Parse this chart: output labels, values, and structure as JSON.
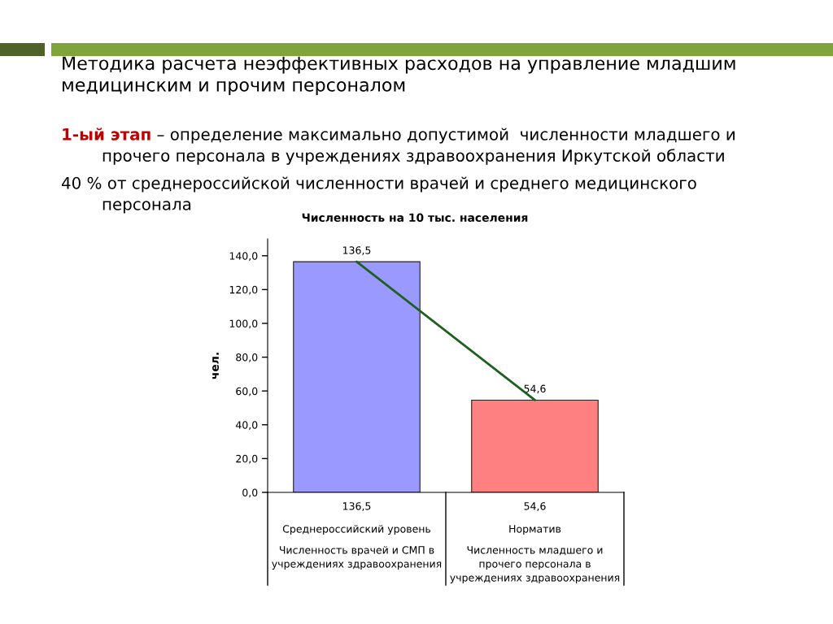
{
  "chart_data": {
    "type": "bar",
    "title": "Методика расчета неэффективных расходов на управление младшим\nмедицинским и прочим персоналом",
    "subtitle": "Численность на 10 тыс. населения",
    "ylabel": "чел.",
    "annotations": [
      "1-ый этап",
      "– определение максимально допустимой  численности младшего и",
      "прочего персонала в учреждениях здравоохранения Иркутской области",
      "40 % от среднероссийской численности врачей и среднего медицинского\nперсонала"
    ],
    "categories": [
      "Среднероссийский уровень\nЧисленность врачей и СМП в\nучреждениях здравоохранения",
      "Норматив\nЧисленность младшего и\nпрочего персонала в\nучреждениях здравоохранения"
    ],
    "series": [
      {
        "colors": [
          "#9999ff",
          "#ff8080"
        ],
        "values": [
          136.5,
          54.6
        ],
        "value_labels": [
          "136,5",
          "54,6"
        ]
      },
      {
        "type": "line",
        "color": "#1f5f1f",
        "values": [
          136.5,
          54.6
        ]
      }
    ],
    "ylim": [
      0,
      150
    ],
    "yticks": [
      {
        "value": 0,
        "label": "0,0"
      },
      {
        "value": 20,
        "label": "20,0"
      },
      {
        "value": 40,
        "label": "40,0"
      },
      {
        "value": 60,
        "label": "60,0"
      },
      {
        "value": 80,
        "label": "80,0"
      },
      {
        "value": 100,
        "label": "100,0"
      },
      {
        "value": 120,
        "label": "120,0"
      },
      {
        "value": 140,
        "label": "140,0"
      }
    ]
  }
}
